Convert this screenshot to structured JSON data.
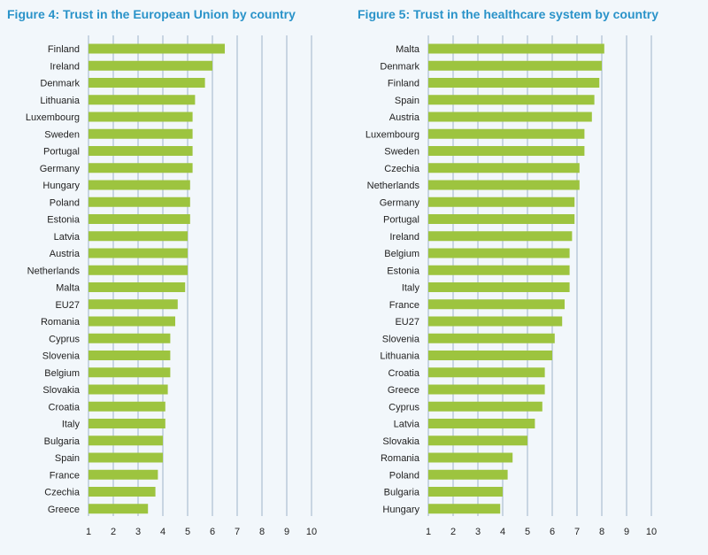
{
  "colors": {
    "title": "#2a93c9",
    "bar": "#9dc43f",
    "grid": "#9fb3c8",
    "background": "#f2f7fb"
  },
  "chart_data": [
    {
      "type": "bar",
      "orientation": "horizontal",
      "title": "Figure 4: Trust in the European Union by country",
      "xlabel": "",
      "ylabel": "",
      "xlim": [
        1,
        10
      ],
      "ticks": [
        1,
        2,
        3,
        4,
        5,
        6,
        7,
        8,
        9,
        10
      ],
      "categories": [
        "Finland",
        "Ireland",
        "Denmark",
        "Lithuania",
        "Luxembourg",
        "Sweden",
        "Portugal",
        "Germany",
        "Hungary",
        "Poland",
        "Estonia",
        "Latvia",
        "Austria",
        "Netherlands",
        "Malta",
        "EU27",
        "Romania",
        "Cyprus",
        "Slovenia",
        "Belgium",
        "Slovakia",
        "Croatia",
        "Italy",
        "Bulgaria",
        "Spain",
        "France",
        "Czechia",
        "Greece"
      ],
      "values": [
        6.5,
        6.0,
        5.7,
        5.3,
        5.2,
        5.2,
        5.2,
        5.2,
        5.1,
        5.1,
        5.1,
        5.0,
        5.0,
        5.0,
        4.9,
        4.6,
        4.5,
        4.3,
        4.3,
        4.3,
        4.2,
        4.1,
        4.1,
        4.0,
        4.0,
        3.8,
        3.7,
        3.4
      ]
    },
    {
      "type": "bar",
      "orientation": "horizontal",
      "title": "Figure 5: Trust in the healthcare system by country",
      "xlabel": "",
      "ylabel": "",
      "xlim": [
        1,
        10
      ],
      "ticks": [
        1,
        2,
        3,
        4,
        5,
        6,
        7,
        8,
        9,
        10
      ],
      "categories": [
        "Malta",
        "Denmark",
        "Finland",
        "Spain",
        "Austria",
        "Luxembourg",
        "Sweden",
        "Czechia",
        "Netherlands",
        "Germany",
        "Portugal",
        "Ireland",
        "Belgium",
        "Estonia",
        "Italy",
        "France",
        "EU27",
        "Slovenia",
        "Lithuania",
        "Croatia",
        "Greece",
        "Cyprus",
        "Latvia",
        "Slovakia",
        "Romania",
        "Poland",
        "Bulgaria",
        "Hungary"
      ],
      "values": [
        8.1,
        8.0,
        7.9,
        7.7,
        7.6,
        7.3,
        7.3,
        7.1,
        7.1,
        6.9,
        6.9,
        6.8,
        6.7,
        6.7,
        6.7,
        6.5,
        6.4,
        6.1,
        6.0,
        5.7,
        5.7,
        5.6,
        5.3,
        5.0,
        4.4,
        4.2,
        4.0,
        3.9
      ]
    }
  ]
}
